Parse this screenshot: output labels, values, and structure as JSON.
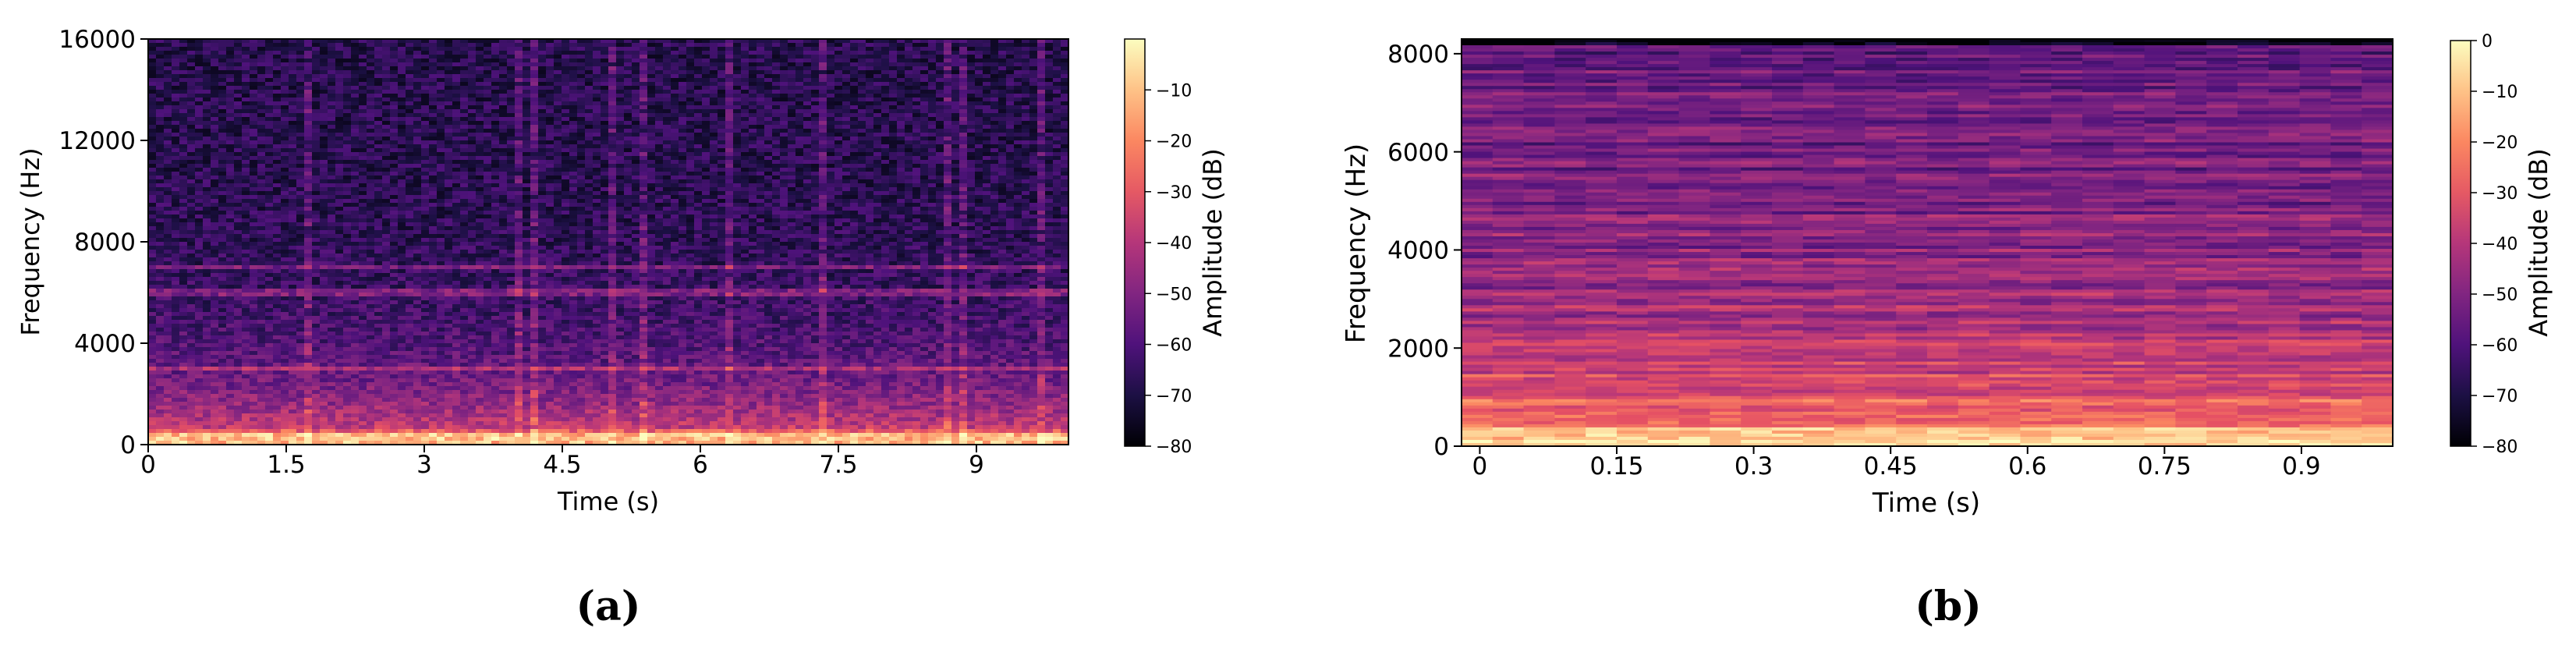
{
  "captions": [
    "(a)",
    "(b)"
  ],
  "chart_data": [
    {
      "type": "heatmap",
      "title": "",
      "xlabel": "Time (s)",
      "ylabel": "Frequency (Hz)",
      "xlim": [
        0,
        10
      ],
      "ylim": [
        0,
        16000
      ],
      "xticks": [
        0,
        1.5,
        3,
        4.5,
        6,
        7.5,
        9
      ],
      "xtick_labels": [
        "0",
        "1.5",
        "3",
        "4.5",
        "6",
        "7.5",
        "9"
      ],
      "yticks": [
        0,
        4000,
        8000,
        12000,
        16000
      ],
      "ytick_labels": [
        "0",
        "4000",
        "8000",
        "12000",
        "16000"
      ],
      "colorbar": {
        "label": "Amplitude (dB)",
        "range": [
          -80,
          0
        ],
        "ticks": [
          -80,
          -70,
          -60,
          -50,
          -40,
          -30,
          -20,
          -10
        ],
        "tick_labels": [
          "−80",
          "−70",
          "−60",
          "−50",
          "−40",
          "−30",
          "−20",
          "−10"
        ],
        "colormap": "magma"
      },
      "features": {
        "harmonic_lines_hz": [
          3000,
          6000,
          7000
        ],
        "typical_level_db_low_freq": -10,
        "typical_level_db_high_freq": -65
      }
    },
    {
      "type": "heatmap",
      "title": "",
      "xlabel": "Time (s)",
      "ylabel": "Frequency (Hz)",
      "xlim": [
        -0.02,
        1.0
      ],
      "ylim": [
        0,
        8000
      ],
      "xticks": [
        0,
        0.15,
        0.3,
        0.45,
        0.6,
        0.75,
        0.9
      ],
      "xtick_labels": [
        "0",
        "0.15",
        "0.3",
        "0.45",
        "0.6",
        "0.75",
        "0.9"
      ],
      "yticks": [
        0,
        2000,
        4000,
        6000,
        8000
      ],
      "ytick_labels": [
        "0",
        "2000",
        "4000",
        "6000",
        "8000"
      ],
      "colorbar": {
        "label": "Amplitude (dB)",
        "range": [
          -80,
          0
        ],
        "ticks": [
          -80,
          -70,
          -60,
          -50,
          -40,
          -30,
          -20,
          -10,
          0
        ],
        "tick_labels": [
          "−80",
          "−70",
          "−60",
          "−50",
          "−40",
          "−30",
          "−20",
          "−10",
          "0"
        ],
        "colormap": "magma"
      },
      "features": {
        "typical_level_db_low_freq": -10,
        "typical_level_db_high_freq": -50
      }
    }
  ]
}
